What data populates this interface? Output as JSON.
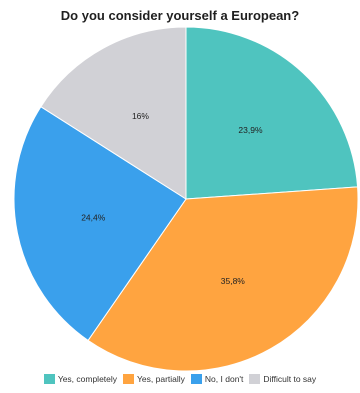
{
  "chart_data": {
    "type": "pie",
    "title": "Do you consider yourself a European?",
    "slices": [
      {
        "label": "Yes, completely",
        "value": 23.9,
        "display": "23,9%",
        "color": "#4fc4bf"
      },
      {
        "label": "Yes, partially",
        "value": 35.8,
        "display": "35,8%",
        "color": "#ffa440"
      },
      {
        "label": "No, I don't",
        "value": 24.4,
        "display": "24,4%",
        "color": "#3aa0ec"
      },
      {
        "label": "Difficult to say",
        "value": 16,
        "display": "16%",
        "color": "#d1d1d6"
      }
    ],
    "start": "12 o'clock",
    "direction": "clockwise",
    "legend_position": "bottom"
  }
}
